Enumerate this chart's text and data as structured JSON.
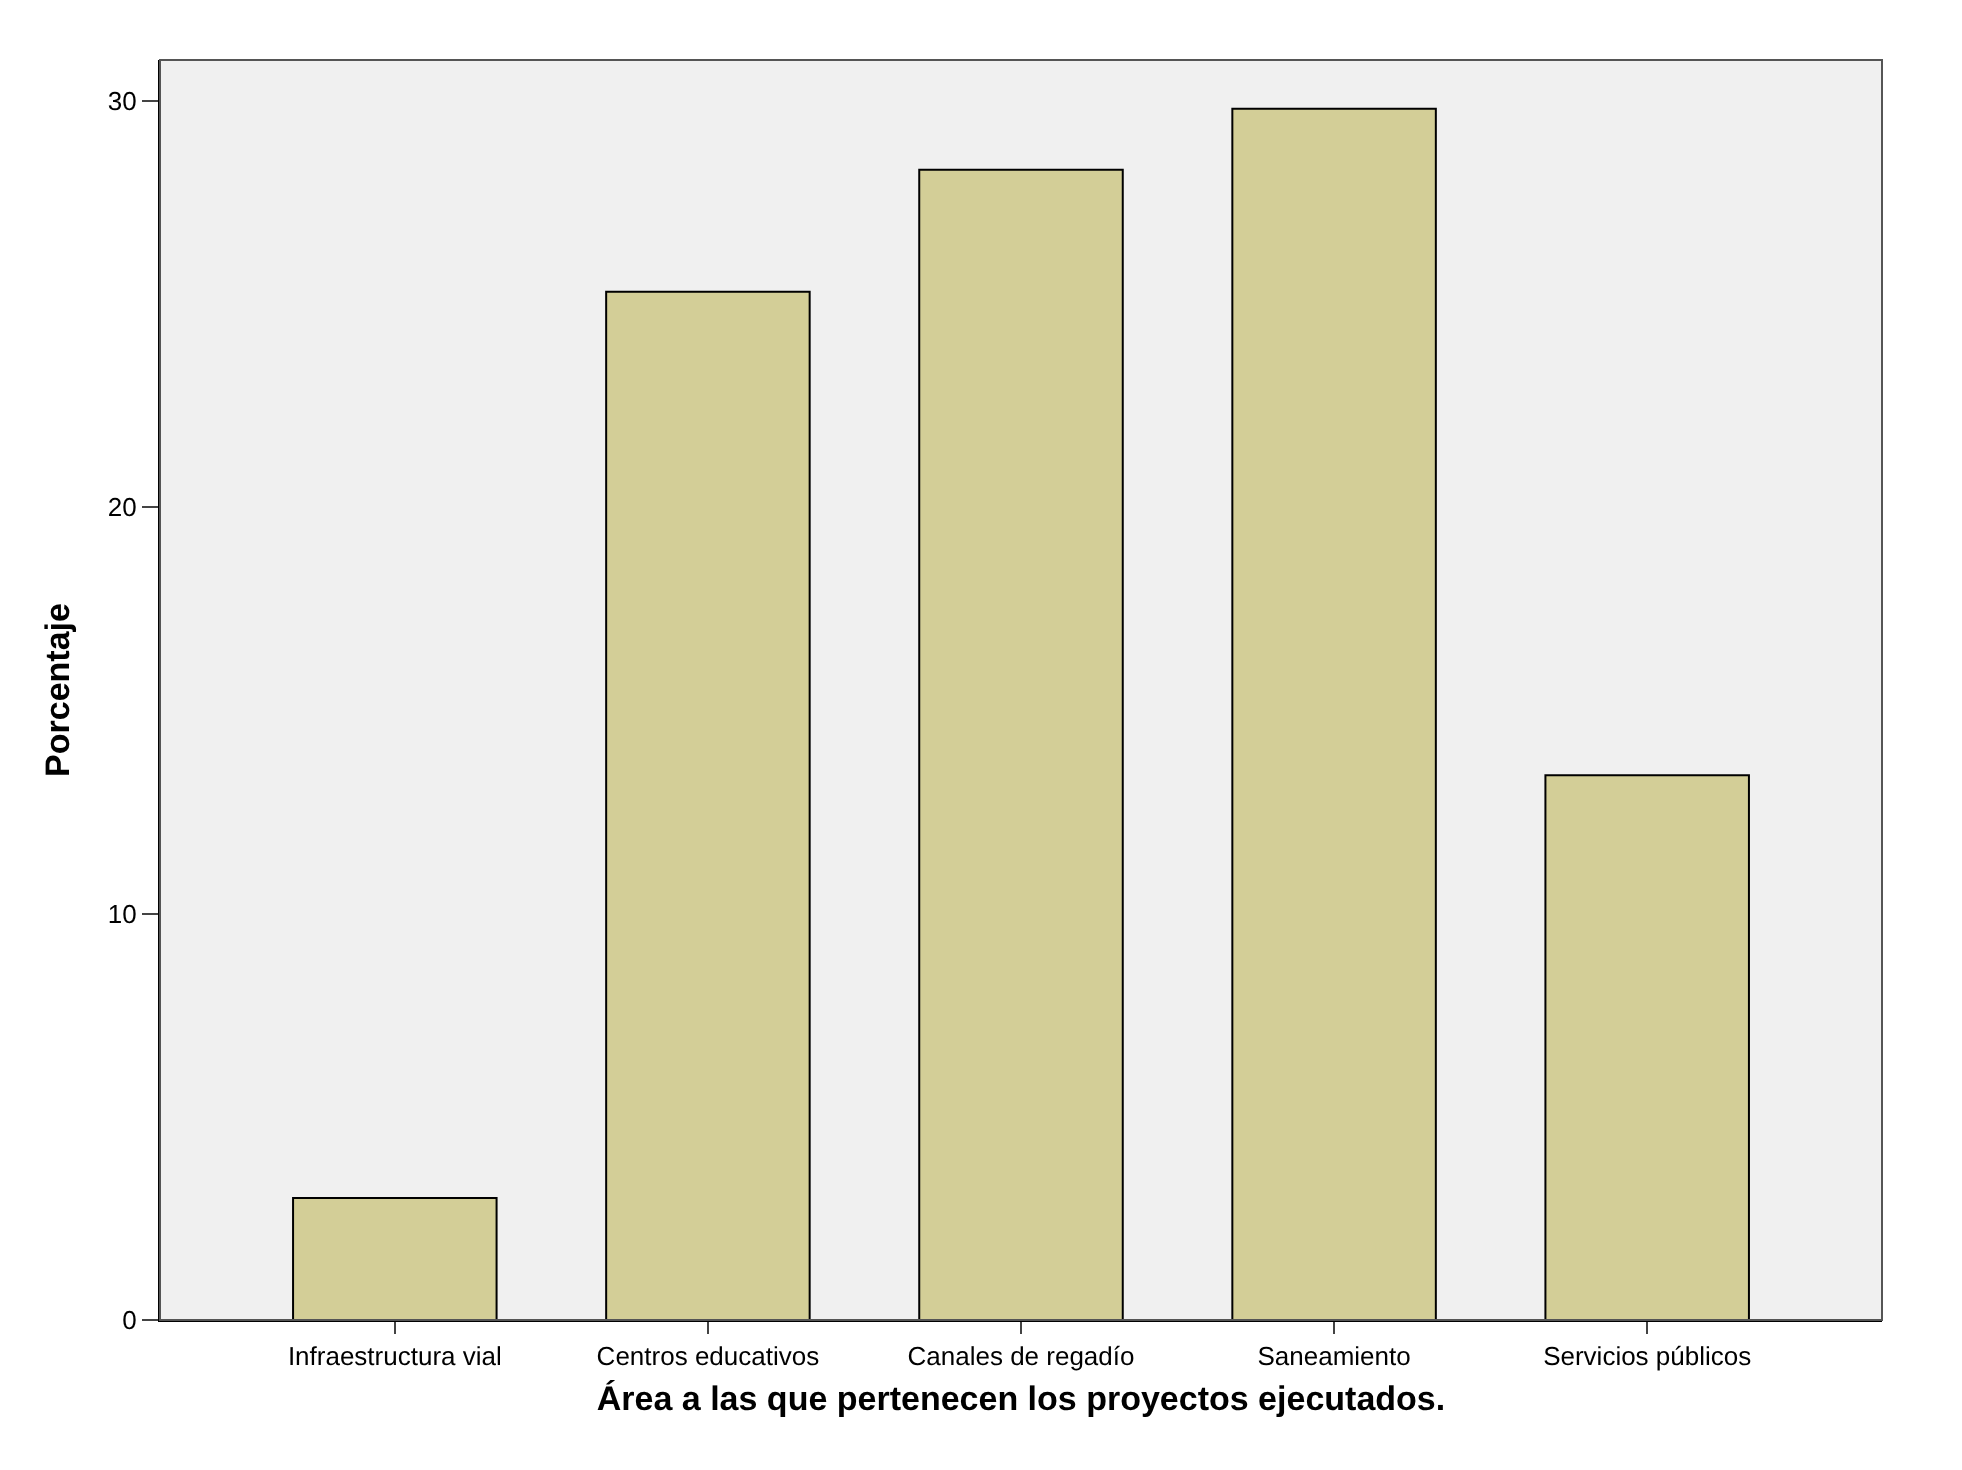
{
  "chart_data": {
    "type": "bar",
    "xlabel": "Área a las que pertenecen los proyectos ejecutados.",
    "ylabel": "Porcentaje",
    "categories": [
      "Infraestructura vial",
      "Centros educativos",
      "Canales de regadío",
      "Saneamiento",
      "Servicios públicos"
    ],
    "values": [
      3.0,
      25.3,
      28.3,
      29.8,
      13.4
    ],
    "color": "#d3ce97",
    "ylim": [
      0,
      31
    ],
    "yticks": [
      0,
      10,
      20,
      30
    ],
    "grid": false
  }
}
